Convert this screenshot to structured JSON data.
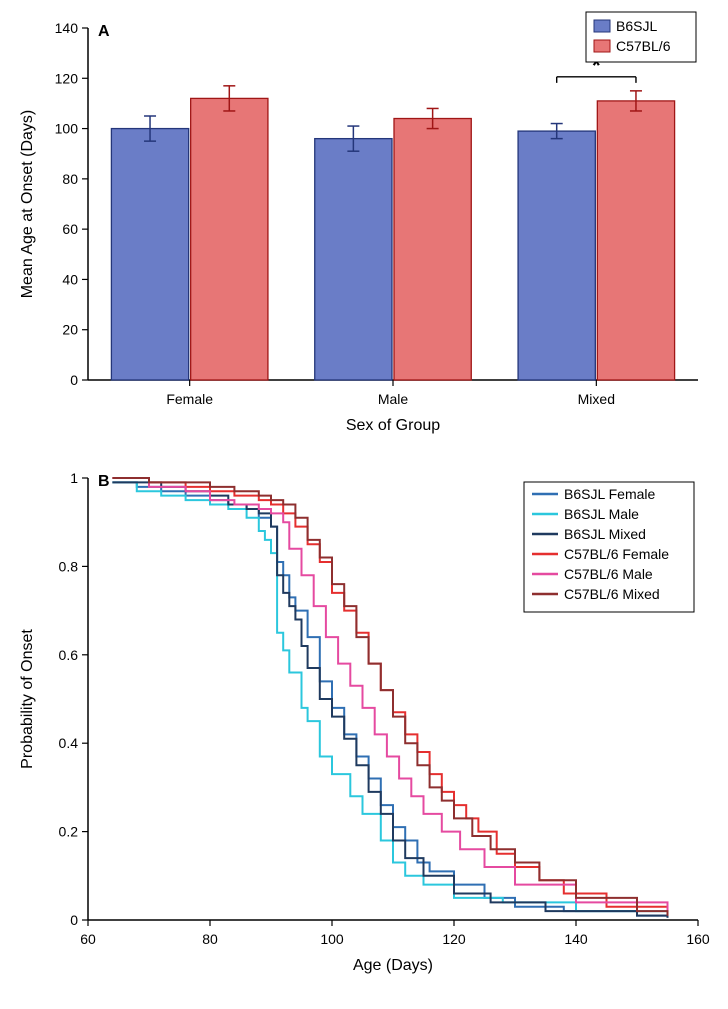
{
  "panelA": {
    "type": "bar",
    "panel_label": "A",
    "ylabel": "Mean Age at Onset (Days)",
    "xlabel": "Sex of Group",
    "ylim": [
      0,
      140
    ],
    "ytick_step": 20,
    "categories": [
      "Female",
      "Male",
      "Mixed"
    ],
    "series": [
      {
        "name": "B6SJL",
        "label": "B6SJL",
        "color": "#6a7dc7",
        "stroke": "#24367a",
        "values": [
          100,
          96,
          99
        ],
        "err": [
          5,
          5,
          3
        ]
      },
      {
        "name": "C57BL6",
        "label": "C57BL/6",
        "color": "#e77676",
        "stroke": "#a01616",
        "values": [
          112,
          104,
          111
        ],
        "err": [
          5,
          4,
          4
        ]
      }
    ],
    "legend_box_stroke": "#000000",
    "significance": [
      {
        "group_index": 2,
        "label": "*"
      }
    ],
    "background": "#ffffff",
    "bar_width_rel": 0.38
  },
  "panelB": {
    "type": "survival",
    "panel_label": "B",
    "ylabel": "Probability of Onset",
    "xlabel": "Age (Days)",
    "xlim": [
      60,
      160
    ],
    "xtick_step": 20,
    "ylim": [
      0,
      1
    ],
    "ytick_step": 0.2,
    "background": "#ffffff",
    "legend_box_stroke": "#000000",
    "series": [
      {
        "name": "B6SJL Female",
        "label": "B6SJL Female",
        "color": "#2f6fb3",
        "points": [
          [
            64,
            0.99
          ],
          [
            68,
            0.98
          ],
          [
            72,
            0.97
          ],
          [
            76,
            0.96
          ],
          [
            80,
            0.95
          ],
          [
            83,
            0.94
          ],
          [
            86,
            0.93
          ],
          [
            88,
            0.91
          ],
          [
            90,
            0.89
          ],
          [
            91,
            0.81
          ],
          [
            92,
            0.78
          ],
          [
            93,
            0.73
          ],
          [
            94,
            0.7
          ],
          [
            96,
            0.64
          ],
          [
            98,
            0.54
          ],
          [
            100,
            0.48
          ],
          [
            102,
            0.42
          ],
          [
            104,
            0.37
          ],
          [
            106,
            0.32
          ],
          [
            108,
            0.26
          ],
          [
            110,
            0.21
          ],
          [
            112,
            0.18
          ],
          [
            114,
            0.13
          ],
          [
            116,
            0.11
          ],
          [
            120,
            0.08
          ],
          [
            125,
            0.05
          ],
          [
            130,
            0.03
          ],
          [
            138,
            0.02
          ],
          [
            150,
            0.01
          ],
          [
            155,
            0.005
          ]
        ]
      },
      {
        "name": "B6SJL Male",
        "label": "B6SJL Male",
        "color": "#2bc7dd",
        "points": [
          [
            64,
            0.99
          ],
          [
            68,
            0.97
          ],
          [
            72,
            0.96
          ],
          [
            76,
            0.95
          ],
          [
            80,
            0.94
          ],
          [
            83,
            0.93
          ],
          [
            86,
            0.91
          ],
          [
            88,
            0.88
          ],
          [
            89,
            0.86
          ],
          [
            90,
            0.83
          ],
          [
            91,
            0.65
          ],
          [
            92,
            0.61
          ],
          [
            93,
            0.56
          ],
          [
            95,
            0.48
          ],
          [
            96,
            0.45
          ],
          [
            98,
            0.37
          ],
          [
            100,
            0.33
          ],
          [
            103,
            0.28
          ],
          [
            105,
            0.24
          ],
          [
            108,
            0.18
          ],
          [
            110,
            0.13
          ],
          [
            112,
            0.1
          ],
          [
            115,
            0.08
          ],
          [
            120,
            0.05
          ],
          [
            128,
            0.04
          ],
          [
            140,
            0.02
          ],
          [
            155,
            0.01
          ]
        ]
      },
      {
        "name": "B6SJL Mixed",
        "label": "B6SJL Mixed",
        "color": "#1f3a5f",
        "points": [
          [
            64,
            0.99
          ],
          [
            68,
            0.99
          ],
          [
            72,
            0.98
          ],
          [
            76,
            0.97
          ],
          [
            80,
            0.96
          ],
          [
            83,
            0.94
          ],
          [
            86,
            0.93
          ],
          [
            88,
            0.92
          ],
          [
            90,
            0.89
          ],
          [
            91,
            0.78
          ],
          [
            92,
            0.74
          ],
          [
            93,
            0.71
          ],
          [
            94,
            0.68
          ],
          [
            95,
            0.62
          ],
          [
            96,
            0.57
          ],
          [
            98,
            0.5
          ],
          [
            100,
            0.46
          ],
          [
            102,
            0.41
          ],
          [
            104,
            0.35
          ],
          [
            106,
            0.29
          ],
          [
            108,
            0.24
          ],
          [
            110,
            0.18
          ],
          [
            112,
            0.14
          ],
          [
            115,
            0.1
          ],
          [
            120,
            0.06
          ],
          [
            126,
            0.04
          ],
          [
            135,
            0.02
          ],
          [
            150,
            0.01
          ],
          [
            155,
            0.005
          ]
        ]
      },
      {
        "name": "C57BL6 Female",
        "label": "C57BL/6 Female",
        "color": "#e52f2f",
        "points": [
          [
            64,
            1.0
          ],
          [
            70,
            0.99
          ],
          [
            76,
            0.98
          ],
          [
            80,
            0.97
          ],
          [
            84,
            0.96
          ],
          [
            88,
            0.95
          ],
          [
            90,
            0.94
          ],
          [
            92,
            0.92
          ],
          [
            94,
            0.89
          ],
          [
            96,
            0.85
          ],
          [
            98,
            0.81
          ],
          [
            100,
            0.74
          ],
          [
            102,
            0.7
          ],
          [
            104,
            0.65
          ],
          [
            106,
            0.58
          ],
          [
            108,
            0.52
          ],
          [
            110,
            0.47
          ],
          [
            112,
            0.42
          ],
          [
            114,
            0.38
          ],
          [
            116,
            0.33
          ],
          [
            118,
            0.29
          ],
          [
            120,
            0.26
          ],
          [
            122,
            0.23
          ],
          [
            124,
            0.2
          ],
          [
            127,
            0.15
          ],
          [
            130,
            0.12
          ],
          [
            134,
            0.09
          ],
          [
            138,
            0.06
          ],
          [
            145,
            0.03
          ],
          [
            155,
            0.01
          ]
        ]
      },
      {
        "name": "C57BL6 Male",
        "label": "C57BL/6 Male",
        "color": "#e54aa0",
        "points": [
          [
            64,
            1.0
          ],
          [
            70,
            0.98
          ],
          [
            76,
            0.97
          ],
          [
            80,
            0.95
          ],
          [
            84,
            0.94
          ],
          [
            88,
            0.93
          ],
          [
            90,
            0.92
          ],
          [
            92,
            0.9
          ],
          [
            93,
            0.84
          ],
          [
            95,
            0.78
          ],
          [
            97,
            0.71
          ],
          [
            99,
            0.64
          ],
          [
            101,
            0.58
          ],
          [
            103,
            0.53
          ],
          [
            105,
            0.48
          ],
          [
            107,
            0.42
          ],
          [
            109,
            0.37
          ],
          [
            111,
            0.32
          ],
          [
            113,
            0.28
          ],
          [
            115,
            0.24
          ],
          [
            118,
            0.2
          ],
          [
            121,
            0.16
          ],
          [
            125,
            0.12
          ],
          [
            130,
            0.08
          ],
          [
            140,
            0.04
          ],
          [
            155,
            0.015
          ]
        ]
      },
      {
        "name": "C57BL6 Mixed",
        "label": "C57BL/6 Mixed",
        "color": "#8e2f2f",
        "points": [
          [
            64,
            1.0
          ],
          [
            70,
            0.99
          ],
          [
            76,
            0.99
          ],
          [
            80,
            0.98
          ],
          [
            84,
            0.97
          ],
          [
            88,
            0.96
          ],
          [
            90,
            0.95
          ],
          [
            92,
            0.94
          ],
          [
            94,
            0.91
          ],
          [
            96,
            0.86
          ],
          [
            98,
            0.82
          ],
          [
            100,
            0.76
          ],
          [
            102,
            0.71
          ],
          [
            104,
            0.64
          ],
          [
            106,
            0.58
          ],
          [
            108,
            0.52
          ],
          [
            110,
            0.46
          ],
          [
            112,
            0.4
          ],
          [
            114,
            0.35
          ],
          [
            116,
            0.3
          ],
          [
            118,
            0.27
          ],
          [
            120,
            0.23
          ],
          [
            123,
            0.19
          ],
          [
            126,
            0.16
          ],
          [
            130,
            0.13
          ],
          [
            134,
            0.09
          ],
          [
            140,
            0.05
          ],
          [
            150,
            0.02
          ],
          [
            155,
            0.01
          ]
        ]
      }
    ]
  }
}
